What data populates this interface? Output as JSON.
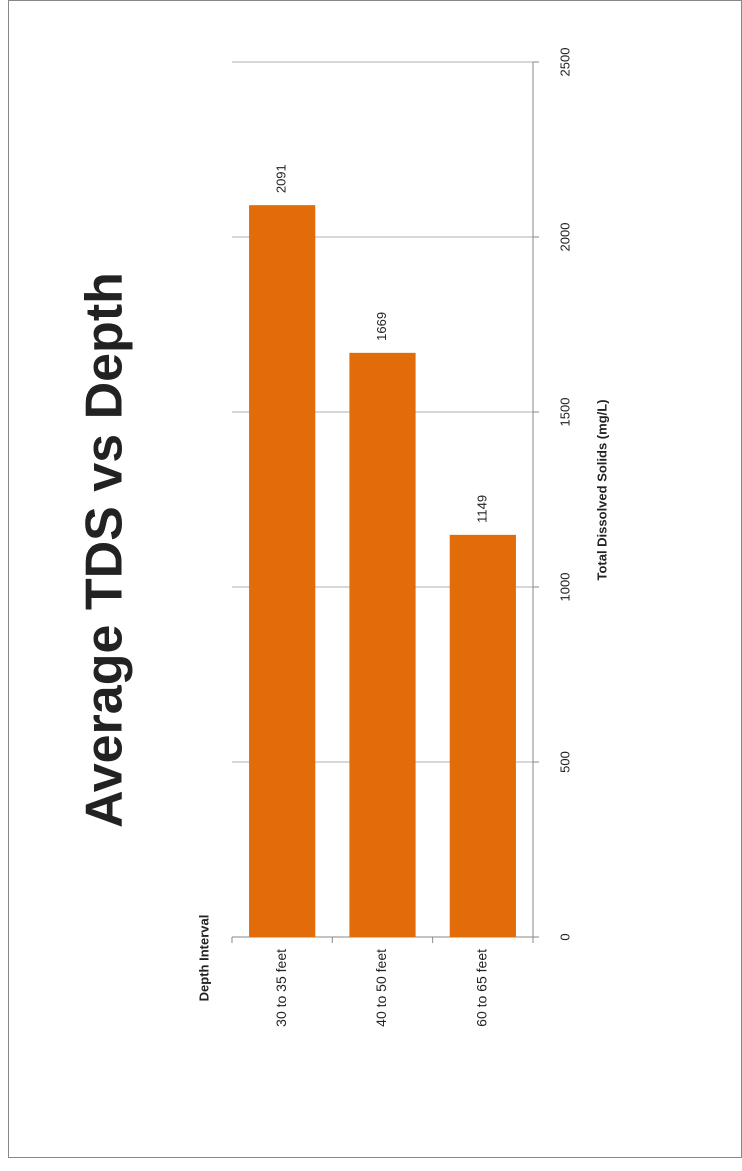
{
  "chart_data": {
    "type": "bar",
    "title": "Average TDS vs Depth",
    "x_label": "Depth Interval",
    "y_label": "Total Dissolved Solids (mg/L)",
    "categories": [
      "30 to 35 feet",
      "40 to 50 feet",
      "60 to 65 feet"
    ],
    "values": [
      2091,
      1669,
      1149
    ],
    "color": "#e36c0a",
    "ylim": [
      0,
      2500
    ],
    "yticks": [
      0,
      500,
      1000,
      1500,
      2000,
      2500
    ],
    "grid": true
  }
}
